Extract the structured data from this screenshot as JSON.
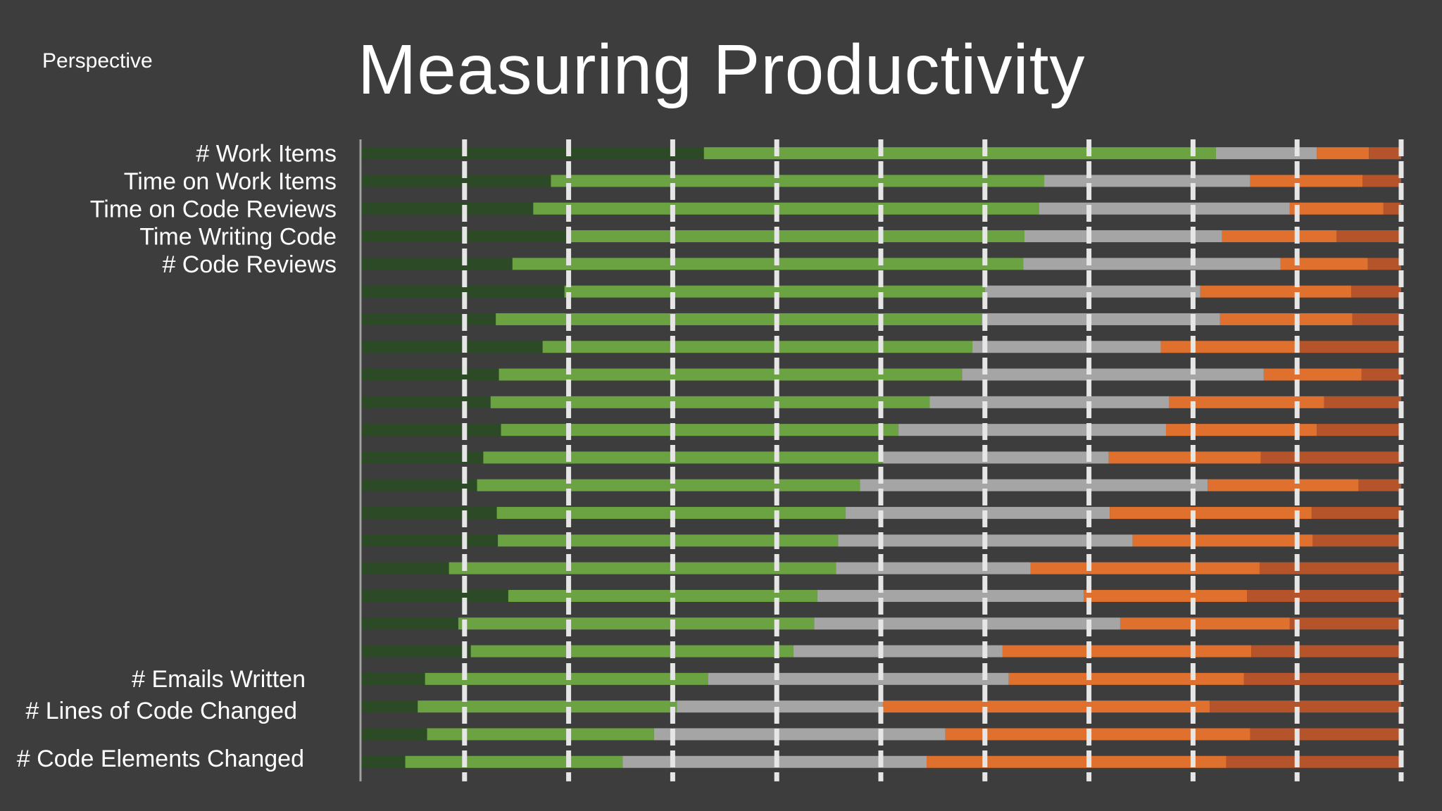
{
  "slide": {
    "label": "Perspective",
    "title": "Measuring Productivity"
  },
  "chart_data": {
    "type": "bar",
    "stacked": true,
    "orientation": "horizontal",
    "title": "Measuring Productivity",
    "xlim": [
      0,
      100
    ],
    "grid": true,
    "legend": "none",
    "colors": [
      "#2d4a26",
      "#6ca342",
      "#a5a5a5",
      "#e0702e",
      "#b5542a"
    ],
    "rows": [
      {
        "label": "# Work Items",
        "values": [
          33.0,
          49.2,
          9.7,
          5.0,
          3.1
        ]
      },
      {
        "label": "Time on Work Items",
        "values": [
          18.3,
          47.4,
          19.8,
          10.8,
          3.7
        ]
      },
      {
        "label": "Time on Code Reviews",
        "values": [
          16.6,
          48.6,
          24.1,
          9.0,
          1.7
        ]
      },
      {
        "label": "Time Writing Code",
        "values": [
          19.8,
          44.0,
          19.0,
          11.0,
          6.2
        ]
      },
      {
        "label": "# Code Reviews",
        "values": [
          14.6,
          49.1,
          24.7,
          8.4,
          3.2
        ]
      },
      {
        "label": "",
        "values": [
          19.6,
          40.4,
          20.7,
          14.5,
          4.8
        ]
      },
      {
        "label": "",
        "values": [
          13.0,
          46.7,
          22.9,
          12.7,
          4.7
        ]
      },
      {
        "label": "",
        "values": [
          17.5,
          41.3,
          18.1,
          13.3,
          9.8
        ]
      },
      {
        "label": "",
        "values": [
          13.3,
          44.5,
          29.0,
          9.4,
          3.8
        ]
      },
      {
        "label": "",
        "values": [
          12.5,
          42.2,
          23.0,
          14.9,
          7.4
        ]
      },
      {
        "label": "",
        "values": [
          13.5,
          38.2,
          25.7,
          14.5,
          8.1
        ]
      },
      {
        "label": "",
        "values": [
          11.8,
          38.4,
          21.7,
          14.6,
          13.5
        ]
      },
      {
        "label": "",
        "values": [
          11.2,
          36.8,
          33.4,
          14.5,
          4.1
        ]
      },
      {
        "label": "",
        "values": [
          13.1,
          33.5,
          25.4,
          19.4,
          8.6
        ]
      },
      {
        "label": "",
        "values": [
          13.2,
          32.7,
          28.3,
          17.3,
          8.5
        ]
      },
      {
        "label": "",
        "values": [
          8.5,
          37.2,
          18.7,
          22.0,
          13.6
        ]
      },
      {
        "label": "",
        "values": [
          14.2,
          29.7,
          25.6,
          15.7,
          14.8
        ]
      },
      {
        "label": "",
        "values": [
          9.4,
          34.2,
          29.4,
          16.3,
          10.7
        ]
      },
      {
        "label": "",
        "values": [
          10.6,
          31.0,
          20.1,
          23.9,
          14.4
        ]
      },
      {
        "label": "",
        "values": [
          6.2,
          27.2,
          28.9,
          22.6,
          15.1
        ]
      },
      {
        "label": "",
        "values": [
          5.5,
          24.9,
          19.8,
          31.4,
          18.4
        ]
      },
      {
        "label": "",
        "values": [
          6.4,
          21.8,
          28.0,
          29.3,
          14.5
        ]
      },
      {
        "label": "",
        "values": [
          4.3,
          20.9,
          29.2,
          28.8,
          16.8
        ]
      }
    ],
    "extra_labels": [
      {
        "label": "# Emails Written"
      },
      {
        "label": "# Lines of Code Changed"
      },
      {
        "label": "# Code Elements Changed"
      }
    ]
  }
}
